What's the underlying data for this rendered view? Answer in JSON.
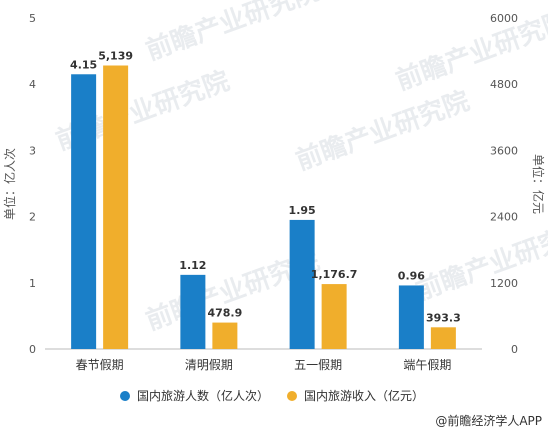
{
  "chart_data": {
    "type": "bar",
    "categories": [
      "春节假期",
      "清明假期",
      "五一假期",
      "端午假期"
    ],
    "series": [
      {
        "name": "国内旅游人数（亿人次）",
        "axis": "left",
        "color": "#1a7fc8",
        "values": [
          4.15,
          1.12,
          1.95,
          0.96
        ],
        "labels": [
          "4.15",
          "1.12",
          "1.95",
          "0.96"
        ]
      },
      {
        "name": "国内旅游收入（亿元）",
        "axis": "right",
        "color": "#f0ae2c",
        "values": [
          5139,
          478.9,
          1176.7,
          393.3
        ],
        "labels": [
          "5,139",
          "478.9",
          "1,176.7",
          "393.3"
        ]
      }
    ],
    "y_left": {
      "label": "单位：亿人次",
      "ylim": [
        0,
        5
      ],
      "ticks": [
        "0",
        "1",
        "2",
        "3",
        "4",
        "5"
      ]
    },
    "y_right": {
      "label": "单位：亿元",
      "ylim": [
        0,
        6000
      ],
      "ticks": [
        "0",
        "1200",
        "2400",
        "3600",
        "4800",
        "6000"
      ]
    },
    "grid": false,
    "legend": "bottom"
  },
  "watermark": "前瞻产业研究院",
  "credit": "@前瞻经济学人APP"
}
